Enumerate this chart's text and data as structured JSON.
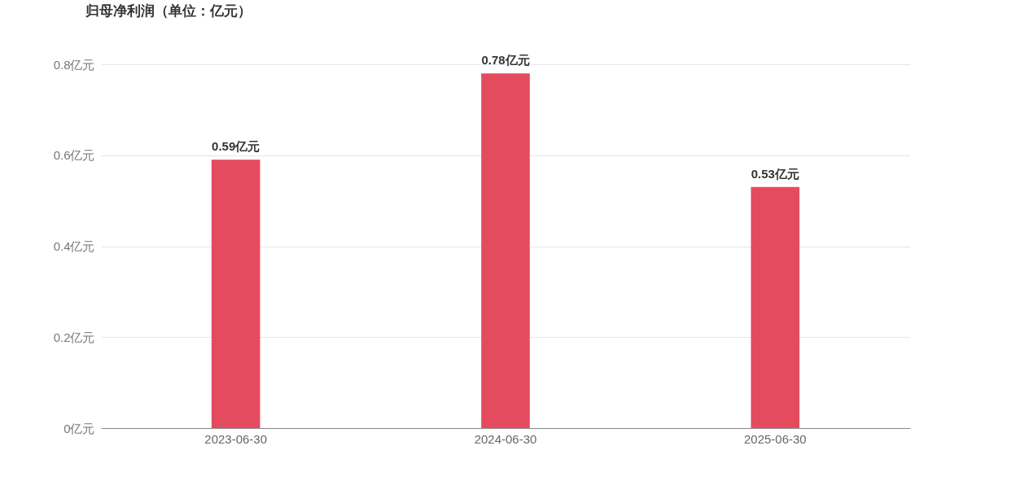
{
  "chart_data": {
    "type": "bar",
    "title": "归母净利润（单位：亿元）",
    "categories": [
      "2023-06-30",
      "2024-06-30",
      "2025-06-30"
    ],
    "values": [
      0.59,
      0.78,
      0.53
    ],
    "value_labels": [
      "0.59亿元",
      "0.78亿元",
      "0.53亿元"
    ],
    "color": "#e54b5f",
    "ylim": [
      0,
      0.8
    ],
    "yticks": [
      {
        "value": 0,
        "label": "0亿元"
      },
      {
        "value": 0.2,
        "label": "0.2亿元"
      },
      {
        "value": 0.4,
        "label": "0.4亿元"
      },
      {
        "value": 0.6,
        "label": "0.6亿元"
      },
      {
        "value": 0.8,
        "label": "0.8亿元"
      }
    ],
    "grid": "y"
  }
}
